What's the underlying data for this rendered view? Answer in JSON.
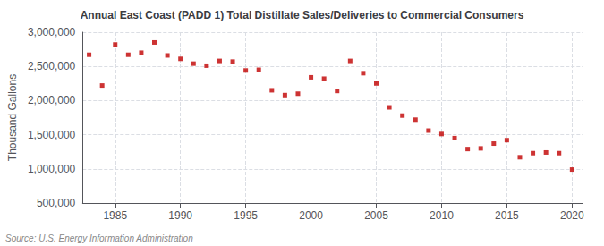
{
  "chart_data": {
    "type": "scatter",
    "title": "Annual East Coast (PADD 1) Total Distillate Sales/Deliveries to Commercial Consumers",
    "ylabel": "Thousand Gallons",
    "source": "Source: U.S. Energy Information Administration",
    "x": [
      1983,
      1984,
      1985,
      1986,
      1987,
      1988,
      1989,
      1990,
      1991,
      1992,
      1993,
      1994,
      1995,
      1996,
      1997,
      1998,
      1999,
      2000,
      2001,
      2002,
      2003,
      2004,
      2005,
      2006,
      2007,
      2008,
      2009,
      2010,
      2011,
      2012,
      2013,
      2014,
      2015,
      2016,
      2017,
      2018,
      2019,
      2020
    ],
    "values": [
      2670000,
      2220000,
      2820000,
      2670000,
      2700000,
      2850000,
      2660000,
      2610000,
      2540000,
      2510000,
      2580000,
      2570000,
      2440000,
      2450000,
      2150000,
      2080000,
      2100000,
      2340000,
      2320000,
      2140000,
      2580000,
      2400000,
      2250000,
      1900000,
      1780000,
      1720000,
      1560000,
      1510000,
      1450000,
      1290000,
      1300000,
      1370000,
      1420000,
      1170000,
      1230000,
      1240000,
      1230000,
      990000
    ],
    "color": "#c00000",
    "marker": "square",
    "xlim": [
      1982.5,
      2020.8
    ],
    "xticks": [
      1985,
      1990,
      1995,
      2000,
      2005,
      2010,
      2015,
      2020
    ],
    "ylim": [
      500000,
      3000000
    ],
    "yticks": [
      {
        "value": 500000,
        "label": "500,000"
      },
      {
        "value": 1000000,
        "label": "1,000,000"
      },
      {
        "value": 1500000,
        "label": "1,500,000"
      },
      {
        "value": 2000000,
        "label": "2,000,000"
      },
      {
        "value": 2500000,
        "label": "2,500,000"
      },
      {
        "value": 3000000,
        "label": "3,000,000"
      }
    ],
    "grid": true
  }
}
